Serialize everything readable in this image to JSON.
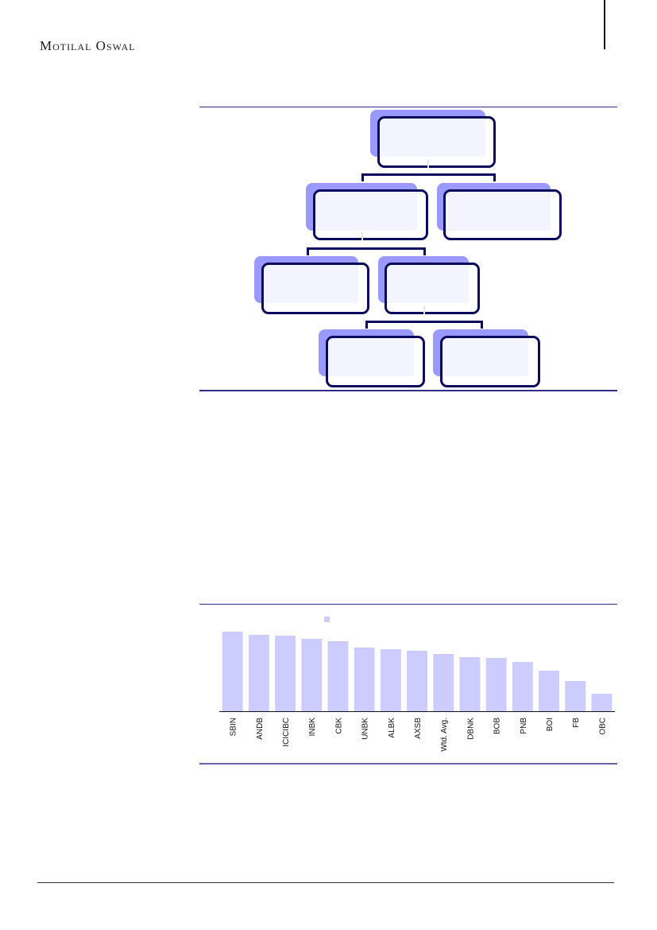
{
  "header": {
    "logo_text": "Motilal Oswal"
  },
  "org_chart": {
    "box_back_color": "#9999ff",
    "box_border_color": "#0b0b5e",
    "box_fill_color": "#f3f4fd"
  },
  "chart_data": {
    "type": "bar",
    "categories": [
      "SBIN",
      "ANDB",
      "ICICIBC",
      "INBK",
      "CBK",
      "UNBK",
      "ALBK",
      "AXSB",
      "Wtd. Avg.",
      "DBNK",
      "BOB",
      "PNB",
      "BOI",
      "FB",
      "OBC"
    ],
    "values": [
      100,
      96,
      95,
      91,
      88,
      80,
      78,
      76,
      72,
      68,
      67,
      62,
      51,
      38,
      22
    ],
    "ylim": [
      0,
      105
    ],
    "bar_color": "#ccccff",
    "legend_position": "top-left"
  }
}
